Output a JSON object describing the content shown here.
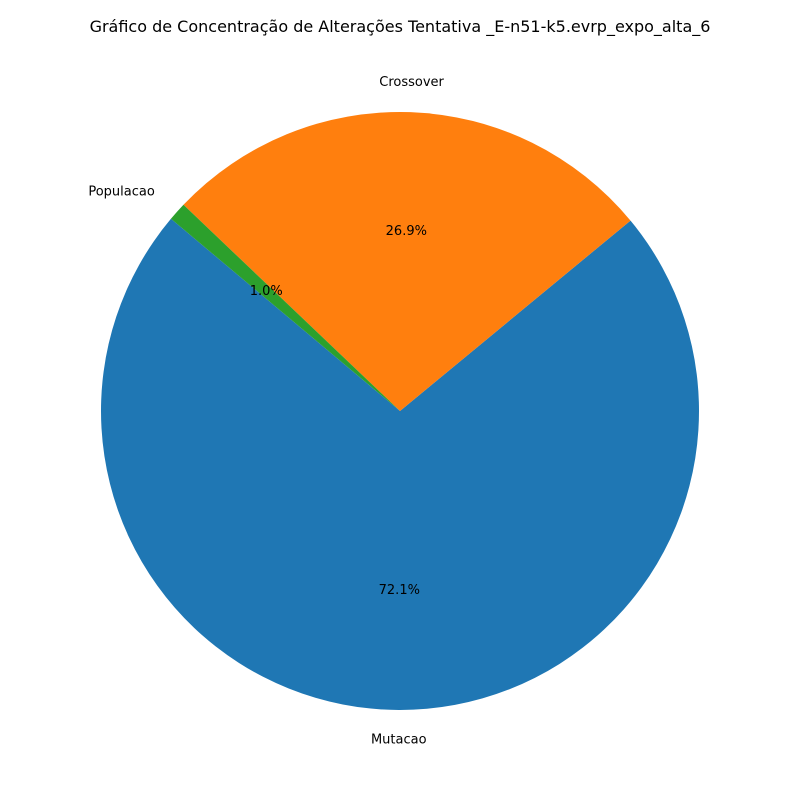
{
  "chart_data": {
    "type": "pie",
    "title": "Gráfico de Concentração de Alterações Tentativa _E-n51-k5.evrp_expo_alta_6",
    "slices": [
      {
        "label": "Mutacao",
        "value": 72.1,
        "pct_label": "72.1%",
        "color": "#1f77b4"
      },
      {
        "label": "Crossover",
        "value": 26.9,
        "pct_label": "26.9%",
        "color": "#ff7f0e"
      },
      {
        "label": "Populacao",
        "value": 1.0,
        "pct_label": "1.0%",
        "color": "#2ca02c"
      }
    ],
    "start_angle_deg": 140,
    "direction": "counterclockwise",
    "legend": "none"
  }
}
